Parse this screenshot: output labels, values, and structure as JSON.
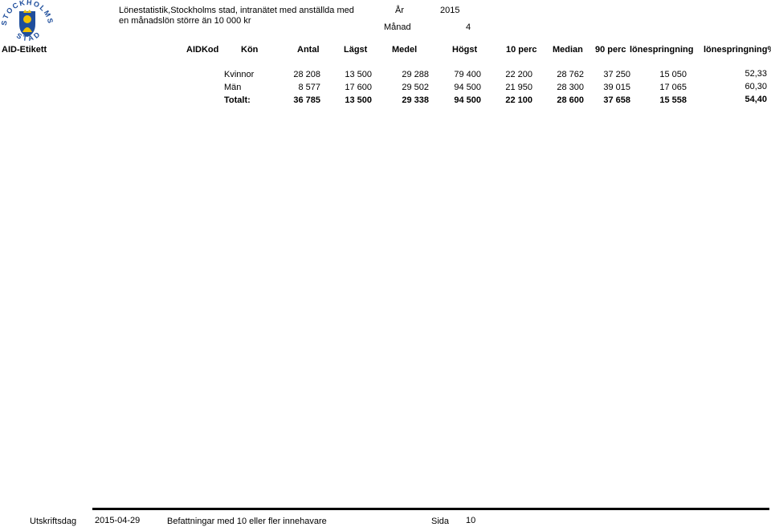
{
  "logo": {
    "top": "STOCKHOLMS",
    "bottom": "STAD"
  },
  "header": {
    "title_line1": "Lönestatistik,Stockholms stad, intranätet med anställda med",
    "title_line2": "en månadslön större än 10 000 kr",
    "year_label": "År",
    "year": "2015",
    "month_label": "Månad",
    "month": "4"
  },
  "table": {
    "columns": [
      "AID-Etikett",
      "AIDKod",
      "Kön",
      "Antal",
      "Lägst",
      "Medel",
      "Högst",
      "10 perc",
      "Median",
      "90 perc",
      "lönespringning",
      "lönespringning%"
    ],
    "rows": [
      [
        "Kvinnor",
        "28 208",
        "13 500",
        "29 288",
        "79 400",
        "22 200",
        "28 762",
        "37 250",
        "15 050",
        "52,33"
      ],
      [
        "Män",
        "8 577",
        "17 600",
        "29 502",
        "94 500",
        "21 950",
        "28 300",
        "39 015",
        "17 065",
        "60,30"
      ],
      [
        "Totalt:",
        "36 785",
        "13 500",
        "29 338",
        "94 500",
        "22 100",
        "28 600",
        "37 658",
        "15 558",
        "54,40"
      ]
    ]
  },
  "footer": {
    "print_date_label": "Utskriftsdag",
    "print_date": "2015-04-29",
    "description": "Befattningar med 10 eller fler innehavare",
    "page_label": "Sida",
    "page": "10"
  }
}
